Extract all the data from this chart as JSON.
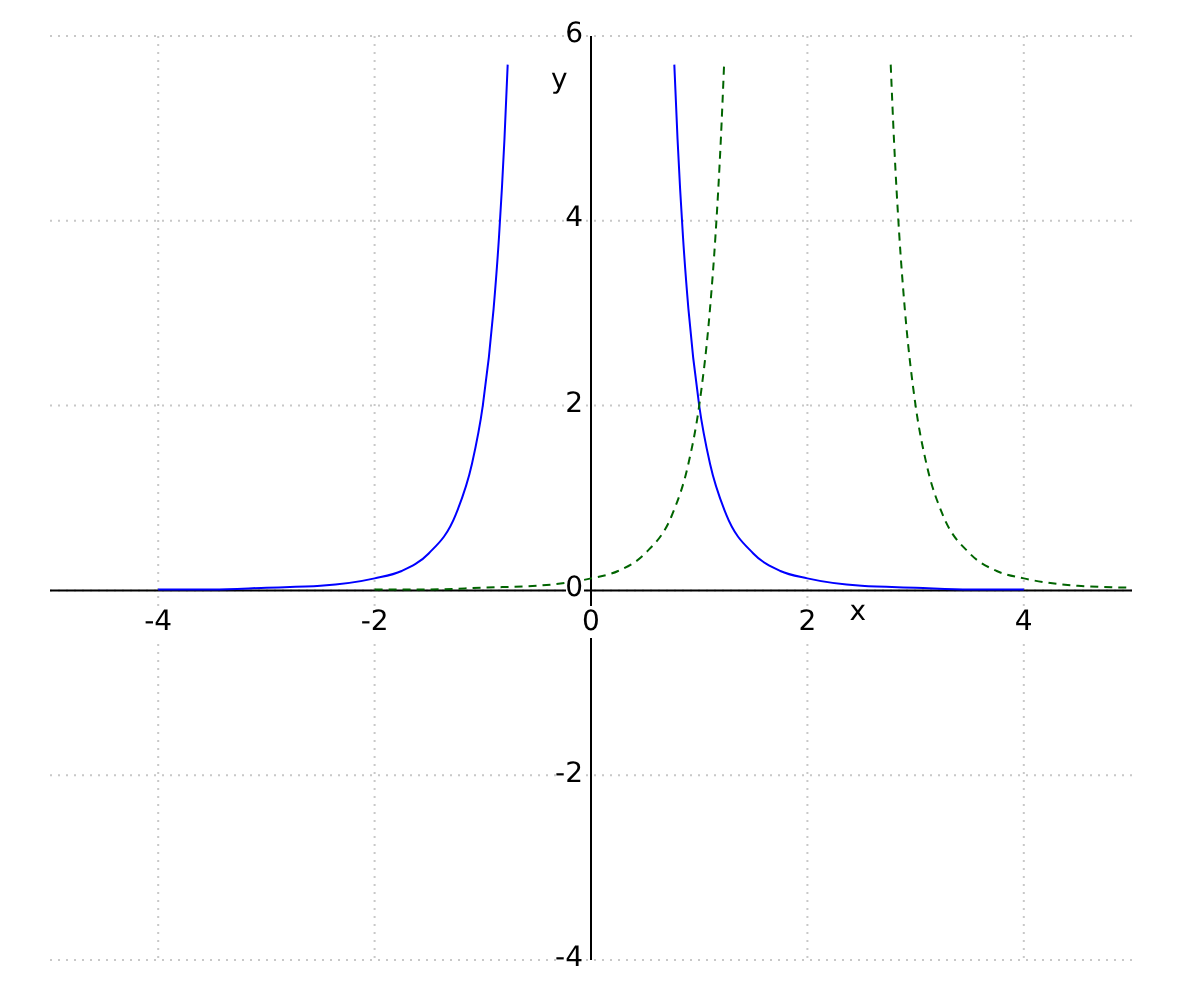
{
  "chart_data": {
    "type": "line",
    "xlabel": "x",
    "ylabel": "y",
    "xlim": [
      -5,
      5
    ],
    "ylim": [
      -4,
      6
    ],
    "xticks": [
      -4,
      -2,
      0,
      2,
      4
    ],
    "yticks": [
      -4,
      -2,
      0,
      2,
      4,
      6
    ],
    "grid": true,
    "series": [
      {
        "color": "#0000ff",
        "line_style": "solid",
        "x": [
          -4,
          -3.5,
          -3,
          -2.5,
          -2,
          -1.75,
          -1.5,
          -1.25,
          -1.1,
          -1,
          -0.9,
          -0.85,
          -0.8,
          -0.77,
          0,
          0.77,
          0.8,
          0.85,
          0.9,
          1,
          1.1,
          1.25,
          1.5,
          1.75,
          2,
          2.5,
          3,
          3.5,
          4
        ],
        "values": [
          0.01,
          0.01,
          0.03,
          0.05,
          0.13,
          0.21,
          0.4,
          0.82,
          1.37,
          2,
          3.05,
          3.83,
          4.88,
          5.69,
          null,
          5.69,
          4.88,
          3.83,
          3.05,
          2,
          1.37,
          0.82,
          0.4,
          0.21,
          0.13,
          0.05,
          0.03,
          0.01,
          0.01
        ]
      },
      {
        "color": "#006400",
        "line_style": "dashed",
        "x": [
          -2,
          -1.5,
          -1,
          -0.5,
          0,
          0.25,
          0.5,
          0.75,
          0.9,
          1,
          1.1,
          1.15,
          1.2,
          1.23,
          2,
          2.77,
          2.8,
          2.85,
          2.9,
          3,
          3.1,
          3.25,
          3.5,
          3.75,
          4,
          4.5,
          5
        ],
        "values": [
          0.01,
          0.01,
          0.03,
          0.05,
          0.13,
          0.21,
          0.4,
          0.82,
          1.37,
          2,
          3.05,
          3.83,
          4.88,
          5.69,
          null,
          5.69,
          4.88,
          3.83,
          3.05,
          2,
          1.37,
          0.82,
          0.4,
          0.21,
          0.13,
          0.05,
          0.03
        ]
      }
    ]
  }
}
